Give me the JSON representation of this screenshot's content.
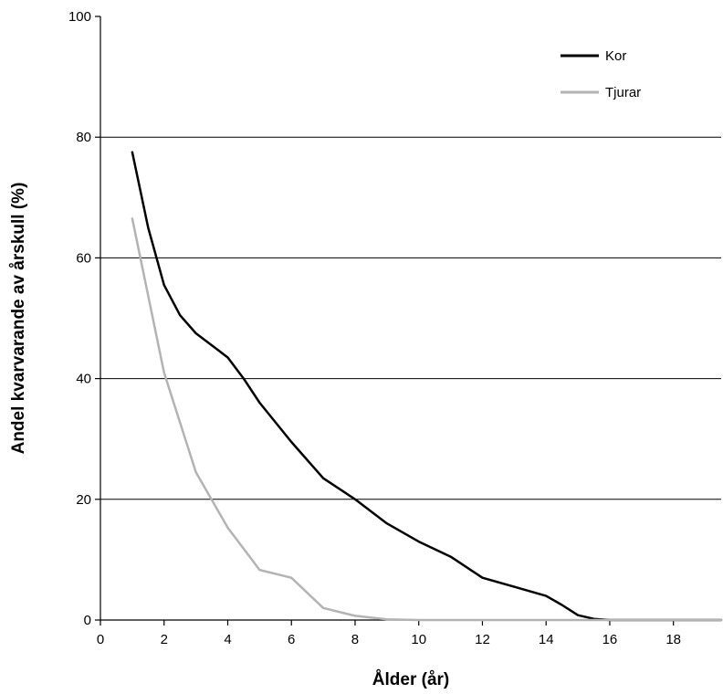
{
  "chart_data": {
    "type": "line",
    "xlabel": "Ålder (år)",
    "ylabel": "Andel kvarvarande av årskull (%)",
    "xlim": [
      0,
      19.5
    ],
    "ylim": [
      0,
      100
    ],
    "x_ticks": [
      0,
      2,
      4,
      6,
      8,
      10,
      12,
      14,
      16,
      18
    ],
    "y_ticks": [
      0,
      20,
      40,
      60,
      80,
      100
    ],
    "grid": "horizontal",
    "legend_position": "top-right",
    "series": [
      {
        "name": "Kor",
        "color": "#000000",
        "x": [
          1,
          1.5,
          2,
          2.5,
          3,
          3.5,
          4,
          4.5,
          5,
          6,
          7,
          8,
          9,
          10,
          11,
          12,
          13,
          14,
          14.5,
          15,
          15.5,
          16,
          17,
          18,
          19,
          19.5
        ],
        "y": [
          77.5,
          65,
          55.5,
          50.5,
          47.5,
          45.5,
          43.5,
          40,
          36,
          29.5,
          23.5,
          20,
          16,
          13,
          10.5,
          7,
          5.5,
          4,
          2.5,
          0.8,
          0.2,
          0,
          0,
          0,
          0,
          0
        ]
      },
      {
        "name": "Tjurar",
        "color": "#b3b3b3",
        "x": [
          1,
          2,
          3,
          4,
          5,
          6,
          7,
          8,
          9,
          10,
          12,
          14,
          16,
          18,
          19.5
        ],
        "y": [
          66.5,
          41,
          24.5,
          15.3,
          8.3,
          7,
          2,
          0.7,
          0.1,
          0,
          0,
          0,
          0,
          0,
          0
        ]
      }
    ]
  }
}
